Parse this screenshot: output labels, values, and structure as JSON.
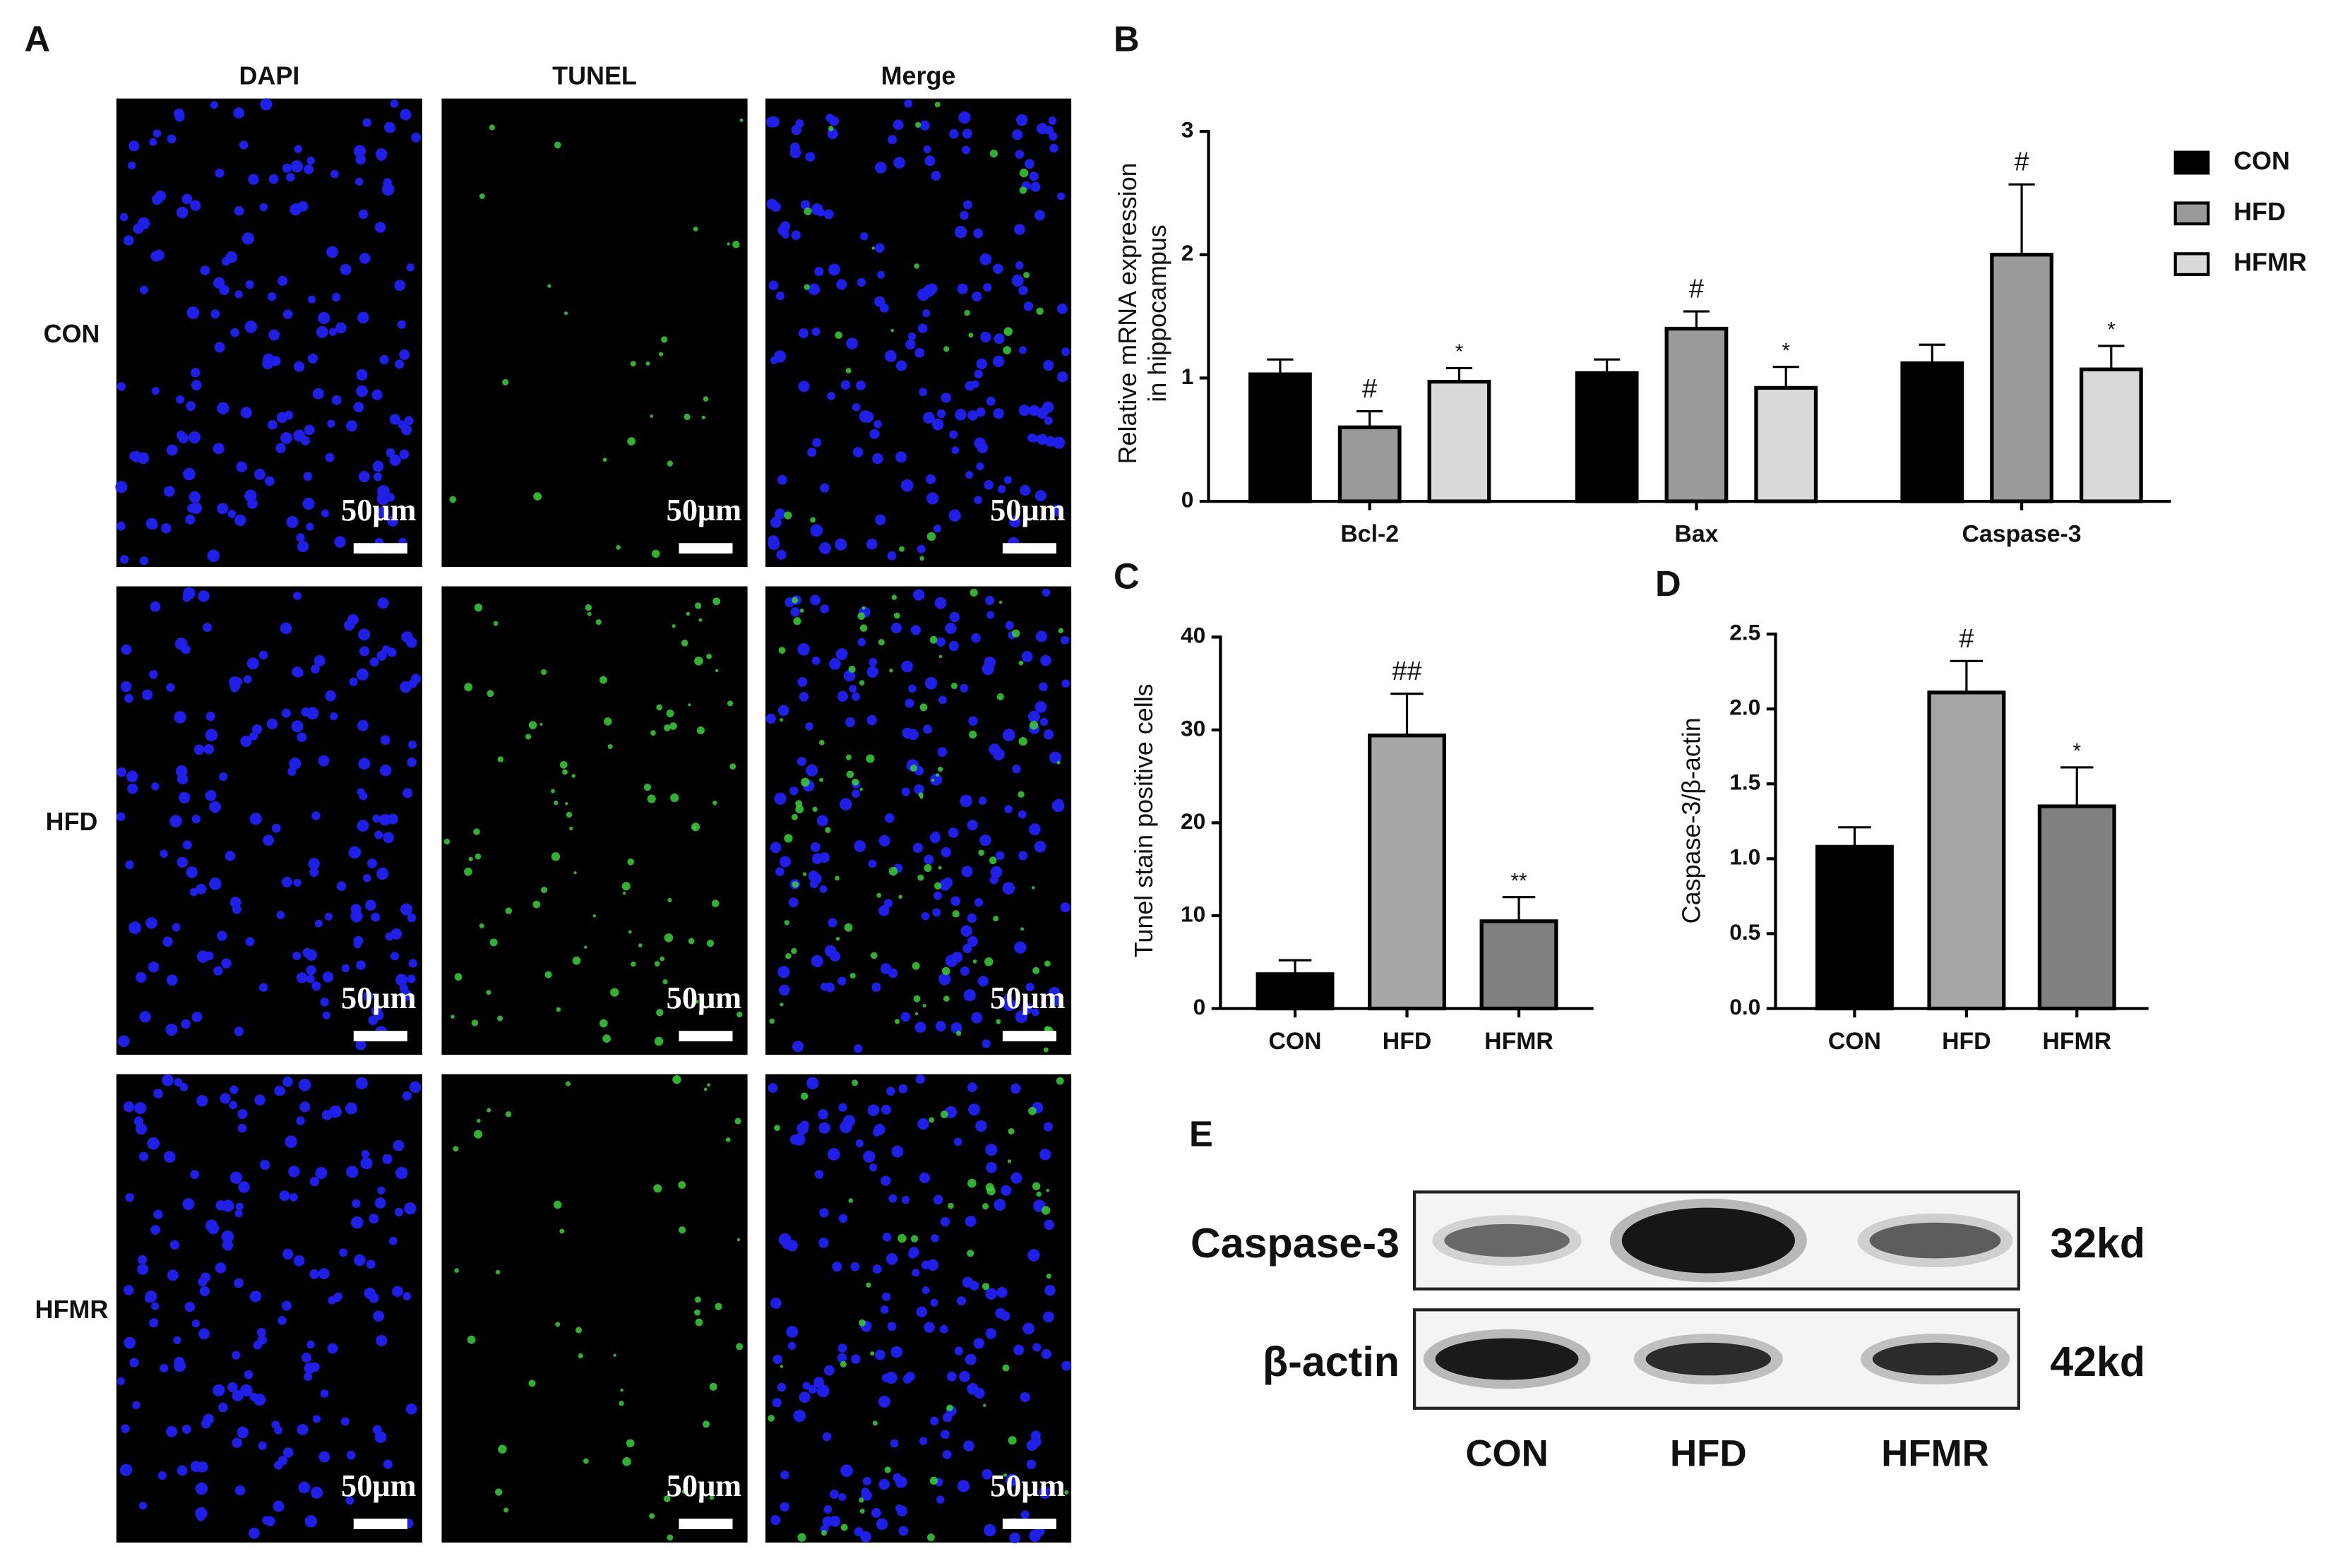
{
  "panel_a": {
    "label": "A",
    "columns": [
      "DAPI",
      "TUNEL",
      "Merge"
    ],
    "rows": [
      "CON",
      "HFD",
      "HFMR"
    ],
    "scale_bar": "50μm"
  },
  "chart_data": [
    {
      "type": "bar",
      "panel": "B",
      "ylabel": [
        "Relative mRNA expression",
        "in hippocampus"
      ],
      "categories": [
        "Bcl-2",
        "Bax",
        "Caspase-3"
      ],
      "series": [
        {
          "name": "CON",
          "color": "#000000",
          "values": [
            1.03,
            1.04,
            1.12
          ],
          "errors": [
            0.12,
            0.11,
            0.15
          ],
          "annotations": [
            null,
            null,
            null
          ]
        },
        {
          "name": "HFD",
          "color": "#9a9a9a",
          "values": [
            0.6,
            1.4,
            2.0
          ],
          "errors": [
            0.13,
            0.14,
            0.57
          ],
          "annotations": [
            "#",
            "#",
            "#"
          ]
        },
        {
          "name": "HFMR",
          "color": "#d9d9d9",
          "values": [
            0.97,
            0.92,
            1.07
          ],
          "errors": [
            0.11,
            0.17,
            0.19
          ],
          "annotations": [
            "*",
            "*",
            "*"
          ]
        }
      ],
      "ylim": [
        0,
        3
      ],
      "yticks": [
        0,
        1,
        2,
        3
      ],
      "legend": "right"
    },
    {
      "type": "bar",
      "panel": "C",
      "ylabel": "Tunel stain positive cells",
      "categories": [
        "CON",
        "HFD",
        "HFMR"
      ],
      "values": [
        3.7,
        29.4,
        9.4
      ],
      "errors": [
        1.5,
        4.5,
        2.6
      ],
      "annotations": [
        null,
        "##",
        "**"
      ],
      "colors": [
        "#000000",
        "#a6a6a6",
        "#808080"
      ],
      "ylim": [
        0,
        40
      ],
      "yticks": [
        0,
        10,
        20,
        30,
        40
      ]
    },
    {
      "type": "bar",
      "panel": "D",
      "ylabel": "Caspase-3/β-actin",
      "categories": [
        "CON",
        "HFD",
        "HFMR"
      ],
      "values": [
        1.08,
        2.11,
        1.35
      ],
      "errors": [
        0.13,
        0.21,
        0.26
      ],
      "annotations": [
        null,
        "#",
        "*"
      ],
      "colors": [
        "#000000",
        "#a6a6a6",
        "#808080"
      ],
      "ylim": [
        0,
        2.5
      ],
      "yticks": [
        {
          "value": 0,
          "label": "0.0"
        },
        0.5,
        {
          "value": 1,
          "label": "1.0"
        },
        1.5,
        {
          "value": 2,
          "label": "2.0"
        },
        2.5
      ]
    }
  ],
  "panel_e": {
    "label": "E",
    "bands": [
      {
        "name": "Caspase-3",
        "size": "32kd"
      },
      {
        "name": "β-actin",
        "size": "42kd"
      }
    ],
    "lanes": [
      "CON",
      "HFD",
      "HFMR"
    ]
  }
}
